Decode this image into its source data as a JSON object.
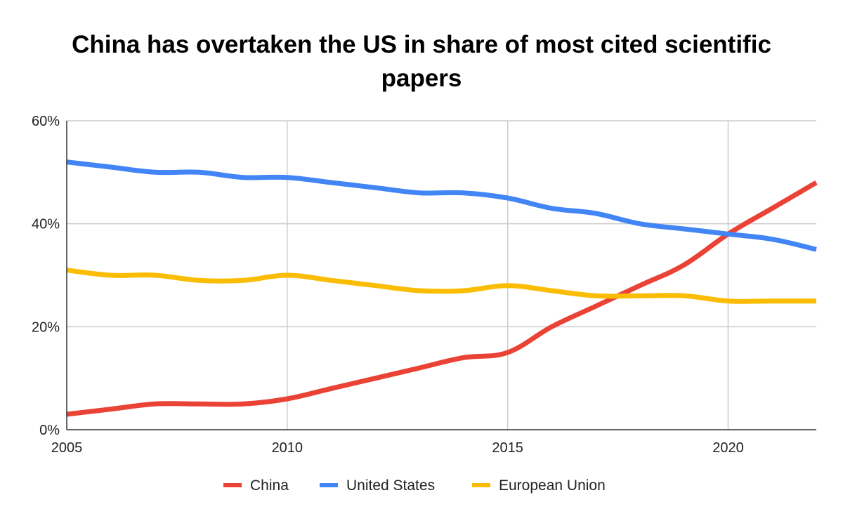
{
  "chart_data": {
    "type": "line",
    "title_lines": [
      "China has overtaken the US in share of most cited scientific",
      "papers"
    ],
    "xlabel": "",
    "ylabel": "",
    "xlim": [
      2005,
      2022
    ],
    "ylim": [
      0,
      60
    ],
    "x_ticks": [
      2005,
      2010,
      2015,
      2020
    ],
    "y_ticks": [
      0,
      20,
      40,
      60
    ],
    "y_tick_labels": [
      "0%",
      "20%",
      "40%",
      "60%"
    ],
    "grid": true,
    "legend_position": "bottom",
    "x": [
      2005,
      2006,
      2007,
      2008,
      2009,
      2010,
      2011,
      2012,
      2013,
      2014,
      2015,
      2016,
      2017,
      2018,
      2019,
      2020,
      2021,
      2022
    ],
    "series": [
      {
        "name": "China",
        "color": "#ea4335",
        "values": [
          3,
          4,
          5,
          5,
          5,
          6,
          8,
          10,
          12,
          14,
          15,
          20,
          24,
          28,
          32,
          38,
          43,
          48
        ]
      },
      {
        "name": "United States",
        "color": "#4285f4",
        "values": [
          52,
          51,
          50,
          50,
          49,
          49,
          48,
          47,
          46,
          46,
          45,
          43,
          42,
          40,
          39,
          38,
          37,
          35
        ]
      },
      {
        "name": "European Union",
        "color": "#fbbc04",
        "values": [
          31,
          30,
          30,
          29,
          29,
          30,
          29,
          28,
          27,
          27,
          28,
          27,
          26,
          26,
          26,
          25,
          25,
          25
        ]
      }
    ]
  }
}
